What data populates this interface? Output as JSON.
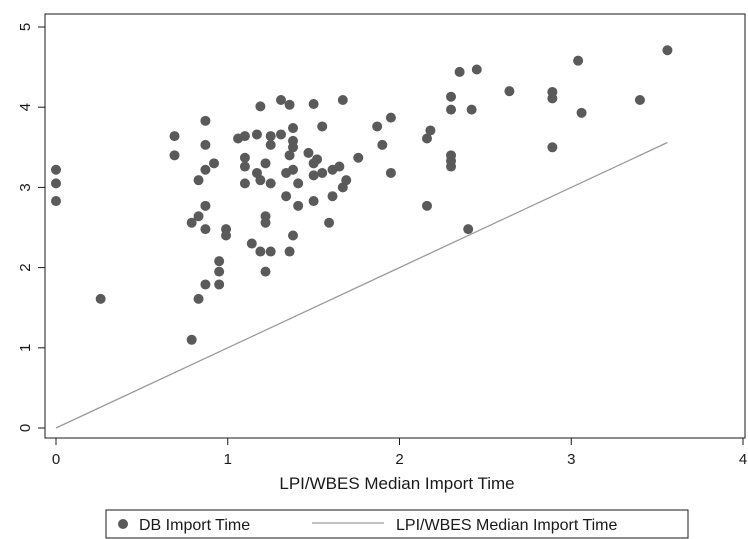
{
  "chart_data": {
    "type": "scatter",
    "title": "",
    "xlabel": "LPI/WBES Median Import Time",
    "ylabel": "",
    "xlim": [
      0,
      4
    ],
    "ylim": [
      0,
      5
    ],
    "x_ticks": [
      "0",
      "1",
      "2",
      "3",
      "4"
    ],
    "y_ticks": [
      "0",
      "1",
      "2",
      "3",
      "4",
      "5"
    ],
    "grid": false,
    "legend_position": "bottom",
    "series": [
      {
        "name": "DB Import Time",
        "kind": "scatter",
        "color": "#5a5a5a",
        "points": [
          [
            0.0,
            3.22
          ],
          [
            0.0,
            3.05
          ],
          [
            0.0,
            2.83
          ],
          [
            0.26,
            1.61
          ],
          [
            0.69,
            3.64
          ],
          [
            0.69,
            3.4
          ],
          [
            0.79,
            2.56
          ],
          [
            0.79,
            1.1
          ],
          [
            0.83,
            3.09
          ],
          [
            0.83,
            2.64
          ],
          [
            0.83,
            1.61
          ],
          [
            0.87,
            3.83
          ],
          [
            0.87,
            3.53
          ],
          [
            0.87,
            3.22
          ],
          [
            0.87,
            2.77
          ],
          [
            0.87,
            2.48
          ],
          [
            0.87,
            1.79
          ],
          [
            0.92,
            3.3
          ],
          [
            0.95,
            2.08
          ],
          [
            0.95,
            1.95
          ],
          [
            0.95,
            1.79
          ],
          [
            0.99,
            2.48
          ],
          [
            0.99,
            2.4
          ],
          [
            1.06,
            3.61
          ],
          [
            1.1,
            3.64
          ],
          [
            1.1,
            3.37
          ],
          [
            1.1,
            3.26
          ],
          [
            1.1,
            3.05
          ],
          [
            1.14,
            2.3
          ],
          [
            1.17,
            3.66
          ],
          [
            1.17,
            3.18
          ],
          [
            1.19,
            4.01
          ],
          [
            1.19,
            3.09
          ],
          [
            1.19,
            2.2
          ],
          [
            1.22,
            3.3
          ],
          [
            1.22,
            2.64
          ],
          [
            1.22,
            2.56
          ],
          [
            1.22,
            1.95
          ],
          [
            1.25,
            3.64
          ],
          [
            1.25,
            3.53
          ],
          [
            1.25,
            3.05
          ],
          [
            1.25,
            2.2
          ],
          [
            1.31,
            4.09
          ],
          [
            1.31,
            3.66
          ],
          [
            1.34,
            3.18
          ],
          [
            1.34,
            2.89
          ],
          [
            1.36,
            4.03
          ],
          [
            1.36,
            3.4
          ],
          [
            1.36,
            2.2
          ],
          [
            1.38,
            3.74
          ],
          [
            1.38,
            3.58
          ],
          [
            1.38,
            3.5
          ],
          [
            1.38,
            3.22
          ],
          [
            1.38,
            2.4
          ],
          [
            1.41,
            3.05
          ],
          [
            1.41,
            2.77
          ],
          [
            1.47,
            3.43
          ],
          [
            1.5,
            4.04
          ],
          [
            1.5,
            3.3
          ],
          [
            1.5,
            3.15
          ],
          [
            1.5,
            2.83
          ],
          [
            1.52,
            3.35
          ],
          [
            1.55,
            3.76
          ],
          [
            1.55,
            3.18
          ],
          [
            1.59,
            2.56
          ],
          [
            1.61,
            3.22
          ],
          [
            1.61,
            2.89
          ],
          [
            1.65,
            3.26
          ],
          [
            1.67,
            4.09
          ],
          [
            1.67,
            3.0
          ],
          [
            1.69,
            3.09
          ],
          [
            1.76,
            3.37
          ],
          [
            1.87,
            3.76
          ],
          [
            1.9,
            3.53
          ],
          [
            1.95,
            3.87
          ],
          [
            1.95,
            3.18
          ],
          [
            2.16,
            3.61
          ],
          [
            2.16,
            2.77
          ],
          [
            2.18,
            3.71
          ],
          [
            2.3,
            4.13
          ],
          [
            2.3,
            3.97
          ],
          [
            2.3,
            3.4
          ],
          [
            2.3,
            3.33
          ],
          [
            2.3,
            3.26
          ],
          [
            2.35,
            4.44
          ],
          [
            2.4,
            2.48
          ],
          [
            2.42,
            3.97
          ],
          [
            2.45,
            4.47
          ],
          [
            2.64,
            4.2
          ],
          [
            2.89,
            4.19
          ],
          [
            2.89,
            4.11
          ],
          [
            2.89,
            3.5
          ],
          [
            3.04,
            4.58
          ],
          [
            3.06,
            3.93
          ],
          [
            3.4,
            4.09
          ],
          [
            3.56,
            4.71
          ]
        ]
      },
      {
        "name": "LPI/WBES Median Import Time",
        "kind": "line",
        "color": "#9a9a9a",
        "points": [
          [
            0.0,
            0.0
          ],
          [
            3.56,
            3.56
          ]
        ]
      }
    ]
  }
}
